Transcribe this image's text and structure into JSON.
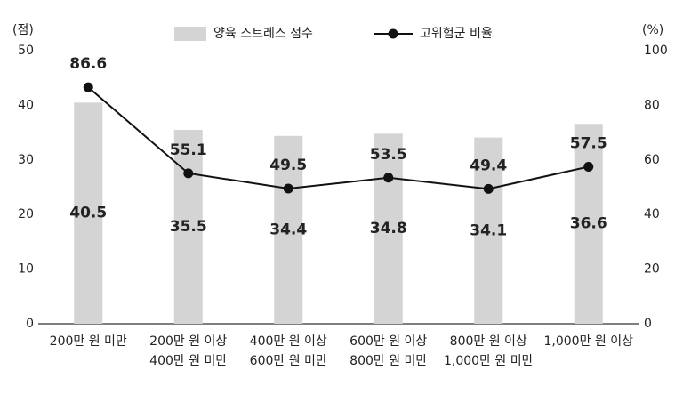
{
  "chart_data": {
    "type": "combo",
    "ylabel": "(점)",
    "y2label": "(%)",
    "categories": [
      [
        "200만 원 미만"
      ],
      [
        "200만 원 이상",
        "400만 원 미만"
      ],
      [
        "400만 원 이상",
        "600만 원 미만"
      ],
      [
        "600만 원 이상",
        "800만 원 미만"
      ],
      [
        "800만 원 이상",
        "1,000만 원 미만"
      ],
      [
        "1,000만 원 이상"
      ]
    ],
    "series": [
      {
        "name": "양육 스트레스 점수",
        "type": "bar",
        "color": "#d4d4d4",
        "values": [
          40.5,
          35.5,
          34.4,
          34.8,
          34.1,
          36.6
        ]
      },
      {
        "name": "고위험군 비율",
        "type": "line",
        "axis": "y2",
        "color": "#111111",
        "values": [
          86.6,
          55.1,
          49.5,
          53.5,
          49.4,
          57.5
        ]
      }
    ],
    "ylim": [
      0,
      50
    ],
    "yticks": [
      0,
      10,
      20,
      30,
      40,
      50
    ],
    "y2lim": [
      0,
      100
    ],
    "y2ticks": [
      0,
      20,
      40,
      60,
      80,
      100
    ],
    "grid": false,
    "legend": "top"
  }
}
